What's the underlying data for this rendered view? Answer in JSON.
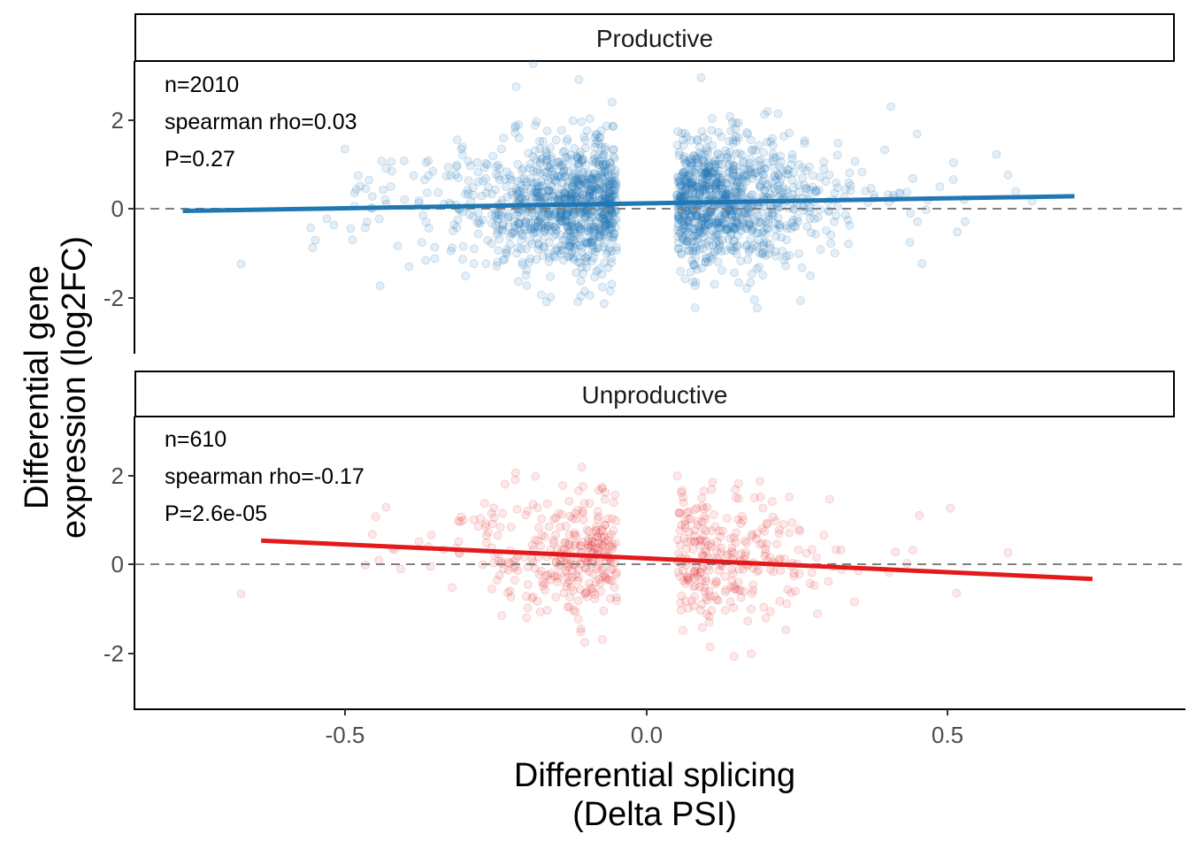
{
  "chart_data": {
    "type": "scatter",
    "xlabel_lines": [
      "Differential splicing",
      "(Delta PSI)"
    ],
    "ylabel_lines": [
      "Differential gene",
      "expression (log2FC)"
    ],
    "xlim": [
      -0.85,
      0.89
    ],
    "ylim": [
      -3.3,
      4.1
    ],
    "x_ticks": [
      {
        "value": -0.5,
        "label": "-0.5"
      },
      {
        "value": 0.0,
        "label": "0.0"
      },
      {
        "value": 0.5,
        "label": "0.5"
      }
    ],
    "y_ticks": [
      {
        "value": -2,
        "label": "-2"
      },
      {
        "value": 0,
        "label": "0"
      },
      {
        "value": 2,
        "label": "2"
      }
    ],
    "reference_line": {
      "y": 0,
      "style": "dashed",
      "color": "#808080"
    },
    "grid": false,
    "legend": "none",
    "panels": [
      {
        "name": "Productive",
        "color": "#1f77b4",
        "n_points": 2010,
        "annotations": [
          "n=2010",
          "spearman rho=0.03",
          "P=0.27"
        ],
        "fit": {
          "x": [
            -0.77,
            0.71
          ],
          "y": [
            -0.05,
            0.28
          ]
        },
        "point_alpha": 0.12
      },
      {
        "name": "Unproductive",
        "color": "#e31a1c",
        "n_points": 610,
        "annotations": [
          "n=610",
          "spearman rho=-0.17",
          "P=2.6e-05"
        ],
        "fit": {
          "x": [
            -0.64,
            0.74
          ],
          "y": [
            0.53,
            -0.33
          ]
        },
        "point_alpha": 0.1
      }
    ]
  }
}
